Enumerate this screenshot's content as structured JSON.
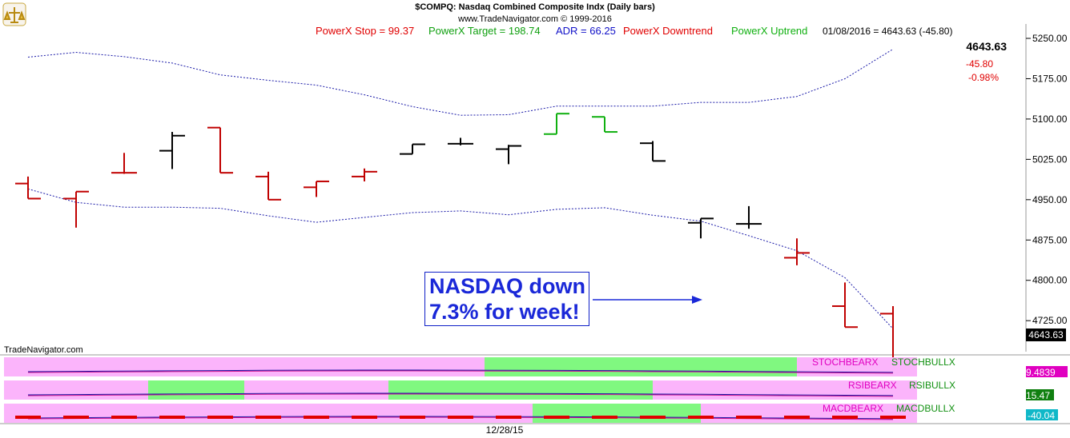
{
  "header": {
    "title": "$COMPQ:  Nasdaq Combined Composite Indx  (Daily bars)",
    "copyright": "www.TradeNavigator.com © 1999-2016"
  },
  "status": {
    "stop": "PowerX Stop = 99.37",
    "target": "PowerX Target = 198.74",
    "adr": "ADR = 66.25",
    "downtrend": "PowerX Downtrend",
    "uptrend": "PowerX Uptrend",
    "quote": "01/08/2016 = 4643.63 (-45.80)"
  },
  "last_price": {
    "value": "4643.63",
    "change": "-45.80",
    "pct": "-0.98%",
    "tag": "4643.63"
  },
  "watermark": "TradeNavigator.com",
  "callout": {
    "line1": "NASDAQ down",
    "line2": "7.3% for week!"
  },
  "indicators": {
    "stoch": {
      "bear": "STOCHBEARX",
      "bull": "STOCHBULLX",
      "value": "9.4839"
    },
    "rsi": {
      "bear": "RSIBEARX",
      "bull": "RSIBULLX",
      "value": "15.47"
    },
    "macd": {
      "bear": "MACDBEARX",
      "bull": "MACDBULLX",
      "value": "-40.04"
    }
  },
  "date_label": "12/28/15",
  "colors": {
    "down": "#c00000",
    "up": "#10b010",
    "neutral": "#000000",
    "band": "#1a1aa8",
    "bear_bg": "#fbb4fb",
    "bull_bg": "#80f880",
    "callout": "#1a28d8"
  },
  "chart_data": {
    "type": "ohlc",
    "title": "$COMPQ:  Nasdaq Combined Composite Indx  (Daily bars)",
    "y_ticks": [
      4725,
      4800,
      4875,
      4950,
      5025,
      5100,
      5175,
      5250
    ],
    "y_tick_labels": [
      "4725.00",
      "4800.00",
      "4875.00",
      "4950.00",
      "5025.00",
      "5100.00",
      "5175.00",
      "5250.00"
    ],
    "ylim": [
      4630,
      5265
    ],
    "bars": [
      {
        "o": 4980,
        "h": 4993,
        "l": 4952,
        "c": 4952,
        "color": "down"
      },
      {
        "o": 4952,
        "h": 4965,
        "l": 4898,
        "c": 4965,
        "color": "down"
      },
      {
        "o": 5000,
        "h": 5037,
        "l": 4998,
        "c": 5000,
        "color": "down"
      },
      {
        "o": 5041,
        "h": 5076,
        "l": 5007,
        "c": 5069,
        "color": "neutral"
      },
      {
        "o": 5084,
        "h": 5084,
        "l": 5000,
        "c": 5000,
        "color": "down"
      },
      {
        "o": 4993,
        "h": 5002,
        "l": 4950,
        "c": 4950,
        "color": "down"
      },
      {
        "o": 4973,
        "h": 4984,
        "l": 4955,
        "c": 4984,
        "color": "down"
      },
      {
        "o": 4993,
        "h": 5008,
        "l": 4984,
        "c": 5002,
        "color": "down"
      },
      {
        "o": 5035,
        "h": 5053,
        "l": 5035,
        "c": 5053,
        "color": "neutral"
      },
      {
        "o": 5054,
        "h": 5065,
        "l": 5051,
        "c": 5054,
        "color": "neutral"
      },
      {
        "o": 5044,
        "h": 5052,
        "l": 5016,
        "c": 5050,
        "color": "neutral"
      },
      {
        "o": 5072,
        "h": 5110,
        "l": 5072,
        "c": 5110,
        "color": "up"
      },
      {
        "o": 5104,
        "h": 5104,
        "l": 5076,
        "c": 5076,
        "color": "up"
      },
      {
        "o": 5055,
        "h": 5059,
        "l": 5022,
        "c": 5022,
        "color": "neutral"
      },
      {
        "o": 4907,
        "h": 4915,
        "l": 4878,
        "c": 4915,
        "color": "neutral"
      },
      {
        "o": 4905,
        "h": 4938,
        "l": 4896,
        "c": 4905,
        "color": "neutral"
      },
      {
        "o": 4842,
        "h": 4878,
        "l": 4828,
        "c": 4851,
        "color": "down"
      },
      {
        "o": 4752,
        "h": 4796,
        "l": 4713,
        "c": 4713,
        "color": "down"
      },
      {
        "o": 4738,
        "h": 4752,
        "l": 4644,
        "c": 4644,
        "color": "down"
      }
    ],
    "upper_band": [
      5215,
      5224,
      5216,
      5204,
      5182,
      5172,
      5163,
      5145,
      5123,
      5107,
      5108,
      5124,
      5124,
      5124,
      5131,
      5131,
      5142,
      5175,
      5230
    ],
    "lower_band": [
      4970,
      4945,
      4936,
      4936,
      4934,
      4920,
      4908,
      4917,
      4926,
      4929,
      4922,
      4932,
      4935,
      4921,
      4910,
      4883,
      4855,
      4805,
      4710
    ],
    "indicator_panels": [
      {
        "name": "STOCH",
        "bull_ranges": [
          [
            10,
            15.5
          ]
        ]
      },
      {
        "name": "RSI",
        "bull_ranges": [
          [
            3,
            4
          ],
          [
            8,
            12.5
          ]
        ]
      },
      {
        "name": "MACD",
        "bull_ranges": [
          [
            11,
            13.5
          ]
        ]
      }
    ]
  }
}
